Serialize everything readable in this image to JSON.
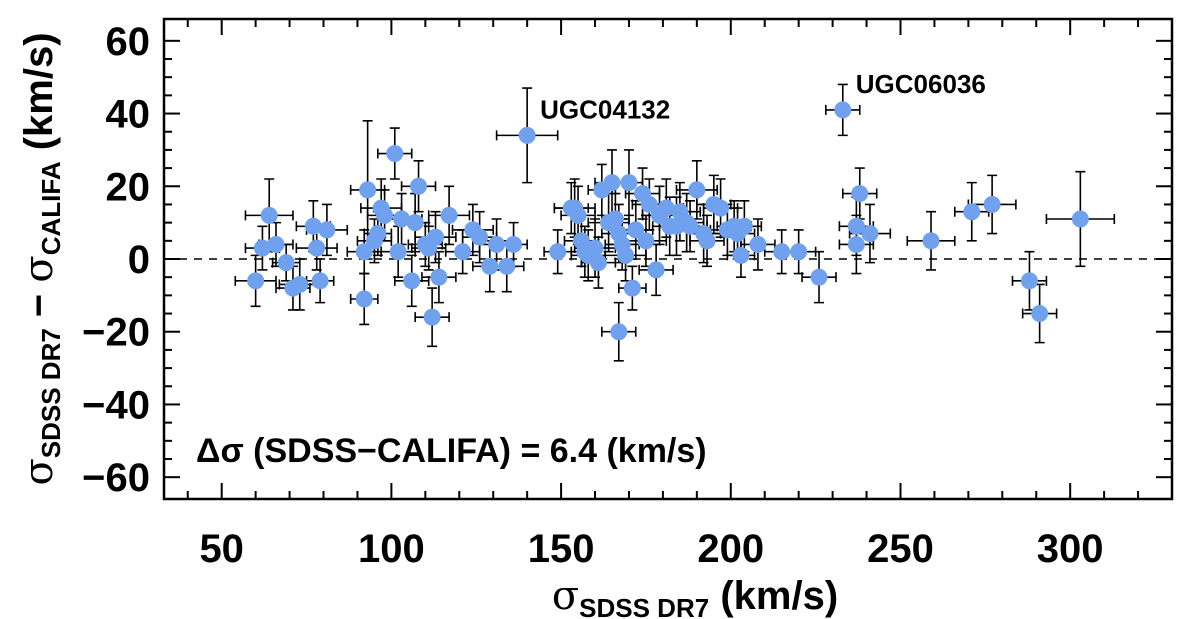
{
  "chart_data": {
    "type": "scatter",
    "title": "",
    "xlabel": {
      "symbol": "σ",
      "sub": "SDSS DR7",
      "unit": "(km/s)"
    },
    "ylabel": {
      "symbol1": "σ",
      "sub1": "SDSS DR7",
      "minus": "−",
      "symbol2": "σ",
      "sub2": "CALIFA",
      "unit": "(km/s)"
    },
    "xlim": [
      33,
      330
    ],
    "ylim": [
      -66,
      66
    ],
    "xticks": [
      50,
      100,
      150,
      200,
      250,
      300
    ],
    "yticks": [
      60,
      40,
      20,
      0,
      -20,
      -40,
      -60
    ],
    "ytick_labels": [
      "60",
      "40",
      "20",
      "0",
      "−20",
      "−40",
      "−60"
    ],
    "reference_line": {
      "y": 0,
      "style": "dashed"
    },
    "marker_color": "#6fa1ee",
    "annotations": [
      {
        "label": "UGC04132",
        "x": 140,
        "y": 34
      },
      {
        "label": "UGC06036",
        "x": 233,
        "y": 41
      }
    ],
    "stat_text": "Δσ (SDSS−CALIFA) = 6.4 (km/s)",
    "points": [
      {
        "x": 60,
        "y": -6,
        "xerr": 6,
        "yerr": 7
      },
      {
        "x": 62,
        "y": 3,
        "xerr": 5,
        "yerr": 6
      },
      {
        "x": 64,
        "y": 12,
        "xerr": 7,
        "yerr": 10
      },
      {
        "x": 66,
        "y": 4,
        "xerr": 5,
        "yerr": 6
      },
      {
        "x": 69,
        "y": -1,
        "xerr": 4,
        "yerr": 5
      },
      {
        "x": 71,
        "y": -8,
        "xerr": 5,
        "yerr": 6
      },
      {
        "x": 73,
        "y": -7,
        "xerr": 6,
        "yerr": 7
      },
      {
        "x": 77,
        "y": 9,
        "xerr": 5,
        "yerr": 7
      },
      {
        "x": 78,
        "y": 3,
        "xerr": 6,
        "yerr": 6
      },
      {
        "x": 79,
        "y": -6,
        "xerr": 4,
        "yerr": 6
      },
      {
        "x": 81,
        "y": 8,
        "xerr": 6,
        "yerr": 7
      },
      {
        "x": 92,
        "y": 2,
        "xerr": 5,
        "yerr": 6
      },
      {
        "x": 92,
        "y": -11,
        "xerr": 4,
        "yerr": 7
      },
      {
        "x": 93,
        "y": 19,
        "xerr": 5,
        "yerr": 19
      },
      {
        "x": 95,
        "y": 5,
        "xerr": 5,
        "yerr": 6
      },
      {
        "x": 96,
        "y": 7,
        "xerr": 4,
        "yerr": 6
      },
      {
        "x": 97,
        "y": 14,
        "xerr": 6,
        "yerr": 8
      },
      {
        "x": 98,
        "y": 12,
        "xerr": 5,
        "yerr": 7
      },
      {
        "x": 101,
        "y": 29,
        "xerr": 5,
        "yerr": 7
      },
      {
        "x": 102,
        "y": 2,
        "xerr": 5,
        "yerr": 7
      },
      {
        "x": 103,
        "y": 11,
        "xerr": 6,
        "yerr": 7
      },
      {
        "x": 106,
        "y": -6,
        "xerr": 5,
        "yerr": 7
      },
      {
        "x": 107,
        "y": 10,
        "xerr": 4,
        "yerr": 8
      },
      {
        "x": 108,
        "y": 20,
        "xerr": 5,
        "yerr": 7
      },
      {
        "x": 110,
        "y": 4,
        "xerr": 5,
        "yerr": 6
      },
      {
        "x": 111,
        "y": 3,
        "xerr": 5,
        "yerr": 6
      },
      {
        "x": 112,
        "y": -16,
        "xerr": 5,
        "yerr": 8
      },
      {
        "x": 113,
        "y": 6,
        "xerr": 6,
        "yerr": 7
      },
      {
        "x": 114,
        "y": -5,
        "xerr": 5,
        "yerr": 7
      },
      {
        "x": 117,
        "y": 12,
        "xerr": 6,
        "yerr": 8
      },
      {
        "x": 121,
        "y": 2,
        "xerr": 5,
        "yerr": 6
      },
      {
        "x": 124,
        "y": 8,
        "xerr": 6,
        "yerr": 7
      },
      {
        "x": 126,
        "y": 6,
        "xerr": 5,
        "yerr": 7
      },
      {
        "x": 129,
        "y": -2,
        "xerr": 5,
        "yerr": 7
      },
      {
        "x": 131,
        "y": 4,
        "xerr": 5,
        "yerr": 7
      },
      {
        "x": 134,
        "y": -2,
        "xerr": 5,
        "yerr": 7
      },
      {
        "x": 136,
        "y": 4,
        "xerr": 4,
        "yerr": 6
      },
      {
        "x": 140,
        "y": 34,
        "xerr": 9,
        "yerr": 13
      },
      {
        "x": 149,
        "y": 2,
        "xerr": 4,
        "yerr": 6
      },
      {
        "x": 153,
        "y": 14,
        "xerr": 5,
        "yerr": 7
      },
      {
        "x": 154,
        "y": 14,
        "xerr": 6,
        "yerr": 8
      },
      {
        "x": 155,
        "y": 12,
        "xerr": 5,
        "yerr": 8
      },
      {
        "x": 156,
        "y": 5,
        "xerr": 5,
        "yerr": 7
      },
      {
        "x": 157,
        "y": 2,
        "xerr": 4,
        "yerr": 7
      },
      {
        "x": 158,
        "y": 1,
        "xerr": 5,
        "yerr": 7
      },
      {
        "x": 160,
        "y": 3,
        "xerr": 6,
        "yerr": 8
      },
      {
        "x": 161,
        "y": -1,
        "xerr": 5,
        "yerr": 7
      },
      {
        "x": 162,
        "y": 19,
        "xerr": 4,
        "yerr": 7
      },
      {
        "x": 164,
        "y": 10,
        "xerr": 6,
        "yerr": 8
      },
      {
        "x": 165,
        "y": 21,
        "xerr": 5,
        "yerr": 9
      },
      {
        "x": 166,
        "y": 11,
        "xerr": 4,
        "yerr": 7
      },
      {
        "x": 167,
        "y": 7,
        "xerr": 5,
        "yerr": 8
      },
      {
        "x": 167,
        "y": -20,
        "xerr": 5,
        "yerr": 8
      },
      {
        "x": 168,
        "y": 4,
        "xerr": 5,
        "yerr": 7
      },
      {
        "x": 169,
        "y": 1,
        "xerr": 6,
        "yerr": 7
      },
      {
        "x": 170,
        "y": 21,
        "xerr": 4,
        "yerr": 9
      },
      {
        "x": 171,
        "y": -8,
        "xerr": 4,
        "yerr": 6
      },
      {
        "x": 172,
        "y": 8,
        "xerr": 5,
        "yerr": 8
      },
      {
        "x": 174,
        "y": 18,
        "xerr": 5,
        "yerr": 7
      },
      {
        "x": 175,
        "y": 5,
        "xerr": 6,
        "yerr": 7
      },
      {
        "x": 176,
        "y": 15,
        "xerr": 5,
        "yerr": 7
      },
      {
        "x": 178,
        "y": -3,
        "xerr": 5,
        "yerr": 7
      },
      {
        "x": 179,
        "y": 12,
        "xerr": 5,
        "yerr": 8
      },
      {
        "x": 181,
        "y": 14,
        "xerr": 5,
        "yerr": 8
      },
      {
        "x": 182,
        "y": 9,
        "xerr": 5,
        "yerr": 8
      },
      {
        "x": 184,
        "y": 9,
        "xerr": 5,
        "yerr": 8
      },
      {
        "x": 185,
        "y": 13,
        "xerr": 6,
        "yerr": 8
      },
      {
        "x": 187,
        "y": 10,
        "xerr": 5,
        "yerr": 8
      },
      {
        "x": 188,
        "y": 9,
        "xerr": 5,
        "yerr": 7
      },
      {
        "x": 190,
        "y": 19,
        "xerr": 6,
        "yerr": 8
      },
      {
        "x": 192,
        "y": 7,
        "xerr": 5,
        "yerr": 8
      },
      {
        "x": 193,
        "y": 5,
        "xerr": 5,
        "yerr": 7
      },
      {
        "x": 195,
        "y": 15,
        "xerr": 5,
        "yerr": 8
      },
      {
        "x": 197,
        "y": 14,
        "xerr": 5,
        "yerr": 8
      },
      {
        "x": 199,
        "y": 8,
        "xerr": 5,
        "yerr": 7
      },
      {
        "x": 201,
        "y": 9,
        "xerr": 5,
        "yerr": 7
      },
      {
        "x": 202,
        "y": 7,
        "xerr": 5,
        "yerr": 7
      },
      {
        "x": 203,
        "y": 1,
        "xerr": 4,
        "yerr": 6
      },
      {
        "x": 204,
        "y": 9,
        "xerr": 5,
        "yerr": 7
      },
      {
        "x": 208,
        "y": 4,
        "xerr": 5,
        "yerr": 7
      },
      {
        "x": 215,
        "y": 2,
        "xerr": 5,
        "yerr": 6
      },
      {
        "x": 220,
        "y": 2,
        "xerr": 5,
        "yerr": 6
      },
      {
        "x": 226,
        "y": -5,
        "xerr": 5,
        "yerr": 7
      },
      {
        "x": 233,
        "y": 41,
        "xerr": 5,
        "yerr": 7
      },
      {
        "x": 237,
        "y": 9,
        "xerr": 5,
        "yerr": 8
      },
      {
        "x": 237,
        "y": 4,
        "xerr": 5,
        "yerr": 8
      },
      {
        "x": 238,
        "y": 18,
        "xerr": 5,
        "yerr": 7
      },
      {
        "x": 241,
        "y": 7,
        "xerr": 6,
        "yerr": 8
      },
      {
        "x": 259,
        "y": 5,
        "xerr": 7,
        "yerr": 8
      },
      {
        "x": 271,
        "y": 13,
        "xerr": 5,
        "yerr": 8
      },
      {
        "x": 277,
        "y": 15,
        "xerr": 7,
        "yerr": 8
      },
      {
        "x": 288,
        "y": -6,
        "xerr": 5,
        "yerr": 8
      },
      {
        "x": 291,
        "y": -15,
        "xerr": 5,
        "yerr": 8
      },
      {
        "x": 303,
        "y": 11,
        "xerr": 10,
        "yerr": 13
      }
    ]
  }
}
